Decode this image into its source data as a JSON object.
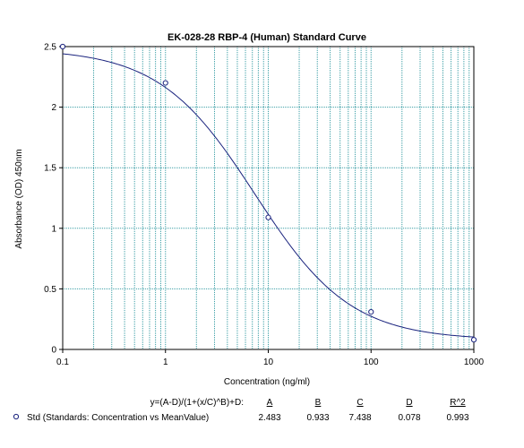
{
  "chart_data": {
    "type": "scatter",
    "title": "EK-028-28 RBP-4 (Human) Standard Curve",
    "xlabel": "Concentration (ng/ml)",
    "ylabel": "Absorbance (OD) 450nm",
    "x_scale": "log",
    "xlim": [
      0.1,
      1000
    ],
    "ylim": [
      0,
      2.5
    ],
    "x_ticks": [
      "0.1",
      "1",
      "10",
      "100",
      "1000"
    ],
    "y_ticks": [
      "0",
      "0.5",
      "1",
      "1.5",
      "2",
      "2.5"
    ],
    "grid": true,
    "series": [
      {
        "name": "Std (Standards: Concentration vs MeanValue)",
        "x": [
          0.1,
          1,
          10,
          100,
          1000
        ],
        "y": [
          2.5,
          2.2,
          1.09,
          0.31,
          0.08
        ]
      }
    ],
    "fit": {
      "equation": "y=(A-D)/(1+(x/C)^B)+D:",
      "params": [
        {
          "name": "A",
          "value": "2.483"
        },
        {
          "name": "B",
          "value": "0.933"
        },
        {
          "name": "C",
          "value": "7.438"
        },
        {
          "name": "D",
          "value": "0.078"
        },
        {
          "name": "R^2",
          "value": "0.993"
        }
      ]
    },
    "legend": "bottom",
    "colors": {
      "grid": "#3a9ea5",
      "curve": "#1a237e",
      "marker": "#1a237e",
      "axis": "#000000"
    }
  }
}
